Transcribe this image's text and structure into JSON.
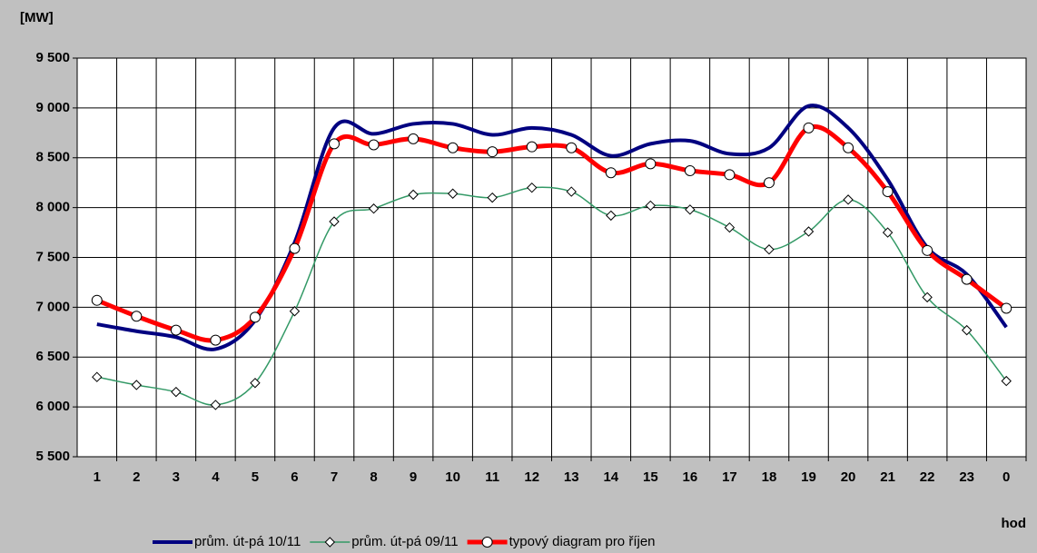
{
  "chart_data": {
    "type": "line",
    "y_label": "[MW]",
    "x_label": "hod",
    "categories": [
      "1",
      "2",
      "3",
      "4",
      "5",
      "6",
      "7",
      "8",
      "9",
      "10",
      "11",
      "12",
      "13",
      "14",
      "15",
      "16",
      "17",
      "18",
      "19",
      "20",
      "21",
      "22",
      "23",
      "0"
    ],
    "series": [
      {
        "name": "prům. út-pá 10/11",
        "color": "#000080",
        "marker": "none",
        "values": [
          6830,
          6760,
          6700,
          6580,
          6870,
          7650,
          8800,
          8740,
          8840,
          8840,
          8730,
          8800,
          8730,
          8520,
          8640,
          8670,
          8540,
          8600,
          9020,
          8800,
          8280,
          7600,
          7330,
          6800
        ]
      },
      {
        "name": "prům. út-pá 09/11",
        "color": "#339966",
        "marker": "diamond",
        "values": [
          6300,
          6220,
          6150,
          6020,
          6240,
          6960,
          7860,
          7990,
          8130,
          8140,
          8100,
          8200,
          8160,
          7920,
          8020,
          7980,
          7800,
          7580,
          7760,
          8080,
          7750,
          7100,
          6770,
          6260
        ]
      },
      {
        "name": "typový diagram pro říjen",
        "color": "#ff0000",
        "marker": "circle",
        "values": [
          7070,
          6910,
          6770,
          6670,
          6900,
          7590,
          8640,
          8630,
          8690,
          8600,
          8560,
          8610,
          8600,
          8350,
          8440,
          8370,
          8330,
          8250,
          8800,
          8600,
          8160,
          7570,
          7280,
          6990
        ]
      }
    ],
    "ylim": [
      5500,
      9500
    ],
    "yticks": [
      {
        "value": 5500,
        "label": "5 500"
      },
      {
        "value": 6000,
        "label": "6 000"
      },
      {
        "value": 6500,
        "label": "6 500"
      },
      {
        "value": 7000,
        "label": "7 000"
      },
      {
        "value": 7500,
        "label": "7 500"
      },
      {
        "value": 8000,
        "label": "8 000"
      },
      {
        "value": 8500,
        "label": "8 500"
      },
      {
        "value": 9000,
        "label": "9 000"
      },
      {
        "value": 9500,
        "label": "9 500"
      }
    ],
    "grid": true,
    "legend": "bottom"
  }
}
